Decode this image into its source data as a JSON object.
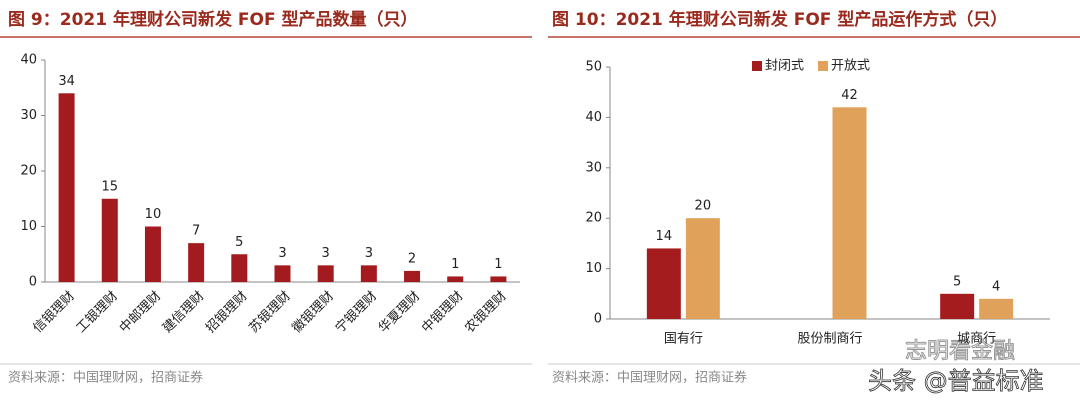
{
  "chart_data": [
    {
      "type": "bar",
      "title": "图 9：2021 年理财公司新发 FOF 型产品数量（只）",
      "categories": [
        "信银理财",
        "工银理财",
        "中邮理财",
        "建信理财",
        "招银理财",
        "苏银理财",
        "徽银理财",
        "宁银理财",
        "华夏理财",
        "中银理财",
        "农银理财"
      ],
      "values": [
        34,
        15,
        10,
        7,
        5,
        3,
        3,
        3,
        2,
        1,
        1
      ],
      "color": "#a31b1f",
      "ylim": [
        0,
        40
      ],
      "yticks": [
        0,
        10,
        20,
        30,
        40
      ],
      "grid": false,
      "source": "资料来源：中国理财网，招商证券"
    },
    {
      "type": "grouped-bar",
      "title": "图 10：2021 年理财公司新发 FOF 型产品运作方式（只）",
      "categories": [
        "国有行",
        "股份制商行",
        "城商行"
      ],
      "series": [
        {
          "name": "封闭式",
          "color": "#a51c1e",
          "values": [
            14,
            null,
            5
          ]
        },
        {
          "name": "开放式",
          "color": "#e0a15a",
          "values": [
            20,
            42,
            4
          ]
        }
      ],
      "ylim": [
        0,
        50
      ],
      "yticks": [
        0,
        10,
        20,
        30,
        40,
        50
      ],
      "grid": false,
      "legend": "top",
      "source": "资料来源：中国理财网，招商证券"
    }
  ],
  "watermarks": [
    "志明看金融",
    "头条 @普益标准"
  ]
}
